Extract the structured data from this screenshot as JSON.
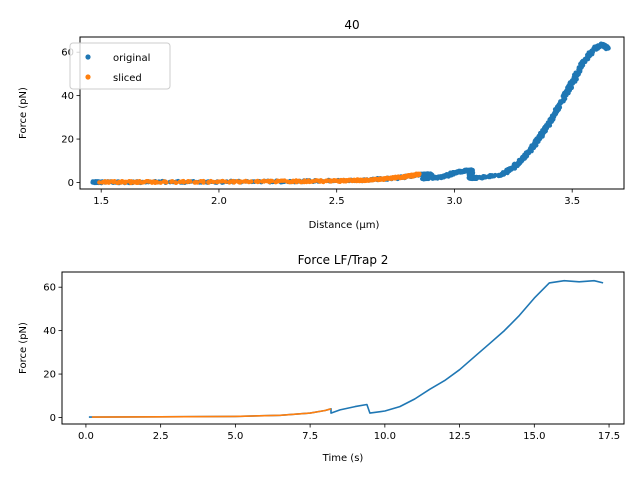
{
  "colors": {
    "original": "#1f77b4",
    "sliced": "#ff7f0e",
    "axis": "#000000",
    "legend_border": "#cccccc"
  },
  "chart_data": [
    {
      "type": "scatter",
      "title": "40",
      "xlabel": "Distance (μm)",
      "ylabel": "Force (pN)",
      "xlim": [
        1.41,
        3.72
      ],
      "ylim": [
        -3,
        67
      ],
      "xticks": [
        1.5,
        2.0,
        2.5,
        3.0,
        3.5
      ],
      "xtick_labels": [
        "1.5",
        "2.0",
        "2.5",
        "3.0",
        "3.5"
      ],
      "yticks": [
        0,
        20,
        40,
        60
      ],
      "ytick_labels": [
        "0",
        "20",
        "40",
        "60"
      ],
      "legend": {
        "position": "top-left",
        "entries": [
          "original",
          "sliced"
        ]
      },
      "series": [
        {
          "name": "original",
          "color_key": "original",
          "points": [
            [
              1.47,
              0.2
            ],
            [
              1.5,
              0.1
            ],
            [
              1.7,
              0.2
            ],
            [
              2.0,
              0.3
            ],
            [
              2.3,
              0.5
            ],
            [
              2.6,
              1.0
            ],
            [
              2.75,
              2.0
            ],
            [
              2.85,
              3.6
            ],
            [
              2.9,
              3.8
            ],
            [
              2.87,
              1.8
            ],
            [
              2.95,
              2.5
            ],
            [
              3.0,
              4.5
            ],
            [
              3.05,
              5.5
            ],
            [
              3.07,
              5.6
            ],
            [
              3.07,
              2.0
            ],
            [
              3.1,
              2.2
            ],
            [
              3.2,
              3.5
            ],
            [
              3.25,
              7.0
            ],
            [
              3.3,
              12.0
            ],
            [
              3.35,
              19.0
            ],
            [
              3.4,
              27.0
            ],
            [
              3.45,
              36.0
            ],
            [
              3.5,
              46.0
            ],
            [
              3.55,
              56.0
            ],
            [
              3.6,
              62.0
            ],
            [
              3.63,
              63.5
            ],
            [
              3.65,
              61.5
            ]
          ]
        },
        {
          "name": "sliced",
          "color_key": "sliced",
          "points": [
            [
              1.5,
              0.2
            ],
            [
              1.7,
              0.2
            ],
            [
              2.0,
              0.3
            ],
            [
              2.3,
              0.5
            ],
            [
              2.5,
              0.7
            ],
            [
              2.6,
              1.0
            ],
            [
              2.7,
              1.6
            ],
            [
              2.8,
              2.8
            ],
            [
              2.85,
              3.8
            ]
          ]
        }
      ]
    },
    {
      "type": "line",
      "title": "Force LF/Trap 2",
      "xlabel": "Time (s)",
      "ylabel": "Force (pN)",
      "xlim": [
        -0.8,
        18.0
      ],
      "ylim": [
        -3,
        67
      ],
      "xticks": [
        0.0,
        2.5,
        5.0,
        7.5,
        10.0,
        12.5,
        15.0,
        17.5
      ],
      "xtick_labels": [
        "0.0",
        "2.5",
        "5.0",
        "7.5",
        "10.0",
        "12.5",
        "15.0",
        "17.5"
      ],
      "yticks": [
        0,
        20,
        40,
        60
      ],
      "ytick_labels": [
        "0",
        "20",
        "40",
        "60"
      ],
      "series": [
        {
          "name": "original",
          "color_key": "original",
          "points": [
            [
              0.1,
              0.2
            ],
            [
              2.5,
              0.3
            ],
            [
              5.0,
              0.5
            ],
            [
              6.5,
              1.0
            ],
            [
              7.5,
              2.0
            ],
            [
              8.0,
              3.2
            ],
            [
              8.2,
              4.0
            ],
            [
              8.2,
              2.0
            ],
            [
              8.5,
              3.5
            ],
            [
              9.0,
              5.0
            ],
            [
              9.4,
              6.0
            ],
            [
              9.5,
              2.0
            ],
            [
              10.0,
              3.0
            ],
            [
              10.5,
              5.0
            ],
            [
              11.0,
              8.5
            ],
            [
              11.5,
              13.0
            ],
            [
              12.0,
              17.0
            ],
            [
              12.5,
              22.0
            ],
            [
              13.0,
              28.0
            ],
            [
              13.5,
              34.0
            ],
            [
              14.0,
              40.0
            ],
            [
              14.5,
              47.0
            ],
            [
              15.0,
              55.0
            ],
            [
              15.5,
              62.0
            ],
            [
              16.0,
              63.0
            ],
            [
              16.5,
              62.5
            ],
            [
              17.0,
              63.0
            ],
            [
              17.3,
              62.0
            ]
          ]
        },
        {
          "name": "sliced",
          "color_key": "sliced",
          "points": [
            [
              0.2,
              0.2
            ],
            [
              2.5,
              0.3
            ],
            [
              5.0,
              0.5
            ],
            [
              6.5,
              1.0
            ],
            [
              7.5,
              2.0
            ],
            [
              8.0,
              3.2
            ],
            [
              8.2,
              4.0
            ]
          ]
        }
      ]
    }
  ]
}
